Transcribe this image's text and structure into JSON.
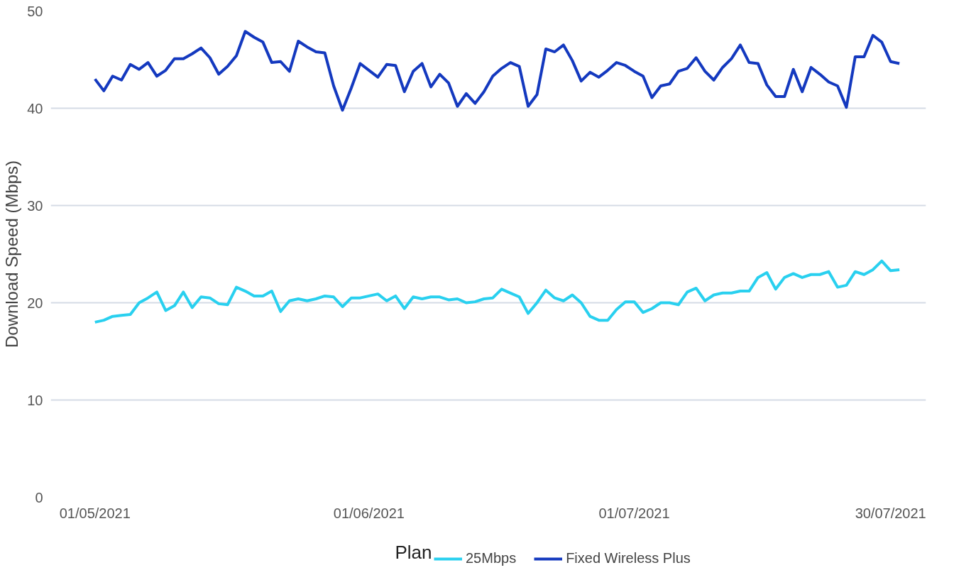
{
  "chart_data": {
    "type": "line",
    "ylabel": "Download Speed (Mbps)",
    "legend_title": "Plan",
    "legend": "bottom",
    "grid": "y",
    "line_style": "solid",
    "x": [
      "2021-05-01",
      "2021-05-02",
      "2021-05-03",
      "2021-05-04",
      "2021-05-05",
      "2021-05-06",
      "2021-05-07",
      "2021-05-08",
      "2021-05-09",
      "2021-05-10",
      "2021-05-11",
      "2021-05-12",
      "2021-05-13",
      "2021-05-14",
      "2021-05-15",
      "2021-05-16",
      "2021-05-17",
      "2021-05-18",
      "2021-05-19",
      "2021-05-20",
      "2021-05-21",
      "2021-05-22",
      "2021-05-23",
      "2021-05-24",
      "2021-05-25",
      "2021-05-26",
      "2021-05-27",
      "2021-05-28",
      "2021-05-29",
      "2021-05-30",
      "2021-05-31",
      "2021-06-01",
      "2021-06-02",
      "2021-06-03",
      "2021-06-04",
      "2021-06-05",
      "2021-06-06",
      "2021-06-07",
      "2021-06-08",
      "2021-06-09",
      "2021-06-10",
      "2021-06-11",
      "2021-06-12",
      "2021-06-13",
      "2021-06-14",
      "2021-06-15",
      "2021-06-16",
      "2021-06-17",
      "2021-06-18",
      "2021-06-19",
      "2021-06-20",
      "2021-06-21",
      "2021-06-22",
      "2021-06-23",
      "2021-06-24",
      "2021-06-25",
      "2021-06-26",
      "2021-06-27",
      "2021-06-28",
      "2021-06-29",
      "2021-06-30",
      "2021-07-01",
      "2021-07-02",
      "2021-07-03",
      "2021-07-04",
      "2021-07-05",
      "2021-07-06",
      "2021-07-07",
      "2021-07-08",
      "2021-07-09",
      "2021-07-10",
      "2021-07-11",
      "2021-07-12",
      "2021-07-13",
      "2021-07-14",
      "2021-07-15",
      "2021-07-16",
      "2021-07-17",
      "2021-07-18",
      "2021-07-19",
      "2021-07-20",
      "2021-07-21",
      "2021-07-22",
      "2021-07-23",
      "2021-07-24",
      "2021-07-25",
      "2021-07-26",
      "2021-07-27",
      "2021-07-28",
      "2021-07-29",
      "2021-07-30",
      "2021-07-31"
    ],
    "xlim": [
      "2021-04-26",
      "2021-08-03"
    ],
    "xticks": [
      {
        "value": "2021-05-01",
        "label": "01/05/2021"
      },
      {
        "value": "2021-06-01",
        "label": "01/06/2021"
      },
      {
        "value": "2021-07-01",
        "label": "01/07/2021"
      },
      {
        "value": "2021-07-30",
        "label": "30/07/2021"
      }
    ],
    "ylim": [
      0,
      50
    ],
    "yticks": [
      0,
      10,
      20,
      30,
      40,
      50
    ],
    "series": [
      {
        "name": "25Mbps",
        "color": "#29d0ef",
        "values": [
          18.0,
          18.2,
          18.6,
          18.7,
          18.8,
          20.0,
          20.5,
          21.1,
          19.2,
          19.7,
          21.1,
          19.5,
          20.6,
          20.5,
          19.9,
          19.8,
          21.6,
          21.2,
          20.7,
          20.7,
          21.2,
          19.1,
          20.2,
          20.4,
          20.2,
          20.4,
          20.7,
          20.6,
          19.6,
          20.5,
          20.5,
          20.7,
          20.9,
          20.2,
          20.7,
          19.4,
          20.6,
          20.4,
          20.6,
          20.6,
          20.3,
          20.4,
          20.0,
          20.1,
          20.4,
          20.5,
          21.4,
          21.0,
          20.6,
          18.9,
          20.0,
          21.3,
          20.5,
          20.2,
          20.8,
          20.0,
          18.6,
          18.2,
          18.2,
          19.3,
          20.1,
          20.1,
          19.0,
          19.4,
          20.0,
          20.0,
          19.8,
          21.1,
          21.5,
          20.2,
          20.8,
          21.0,
          21.0,
          21.2,
          21.2,
          22.6,
          23.1,
          21.4,
          22.6,
          23.0,
          22.6,
          22.9,
          22.9,
          23.2,
          21.6,
          21.8,
          23.2,
          22.9,
          23.4,
          24.3,
          23.3,
          23.4
        ]
      },
      {
        "name": "Fixed Wireless Plus",
        "color": "#1439bf",
        "values": [
          43.0,
          41.8,
          43.3,
          42.9,
          44.5,
          44.0,
          44.7,
          43.3,
          43.9,
          45.1,
          45.1,
          45.6,
          46.2,
          45.2,
          43.5,
          44.3,
          45.4,
          47.9,
          47.3,
          46.8,
          44.7,
          44.8,
          43.8,
          46.9,
          46.3,
          45.8,
          45.7,
          42.3,
          39.8,
          42.1,
          44.6,
          43.9,
          43.2,
          44.5,
          44.4,
          41.7,
          43.8,
          44.6,
          42.2,
          43.5,
          42.6,
          40.2,
          41.5,
          40.5,
          41.7,
          43.3,
          44.1,
          44.7,
          44.3,
          40.2,
          41.4,
          46.1,
          45.8,
          46.5,
          44.9,
          42.8,
          43.7,
          43.2,
          43.9,
          44.7,
          44.4,
          43.8,
          43.3,
          41.1,
          42.3,
          42.5,
          43.8,
          44.1,
          45.2,
          43.8,
          42.9,
          44.2,
          45.1,
          46.5,
          44.7,
          44.6,
          42.4,
          41.2,
          41.2,
          44.0,
          41.7,
          44.2,
          43.5,
          42.7,
          42.3,
          40.1,
          45.3,
          45.3,
          47.5,
          46.8,
          44.8,
          44.6
        ]
      }
    ]
  }
}
